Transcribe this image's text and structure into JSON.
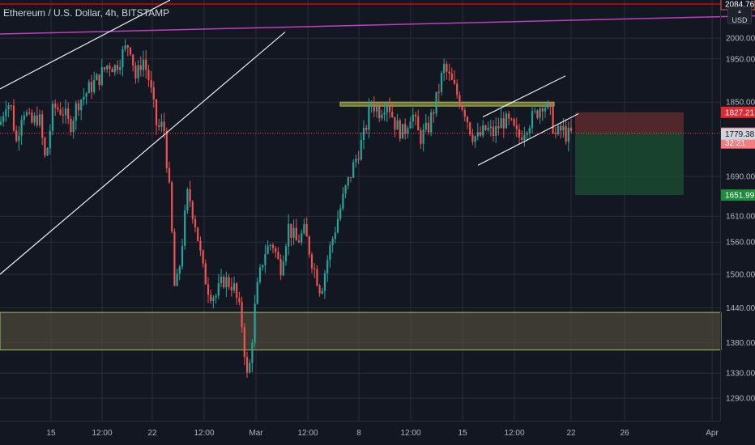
{
  "header": {
    "symbol_title": "Ethereum / U.S. Dollar, 4h, BITSTAMP",
    "currency": "USD"
  },
  "colors": {
    "background": "#131722",
    "grid": "#2a2e39",
    "up_candle": "#26a69a",
    "down_candle": "#ef5350",
    "resistance_line": "#ff0000",
    "long_trendline": "#c040c0",
    "channel_lines": "#ffffff",
    "zone_fill": "#4f4a3a",
    "zone_border": "#a0c060",
    "stop_zone": "#4a2226",
    "target_zone": "#17382b"
  },
  "chart_data": {
    "type": "candlestick",
    "title": "Ethereum / U.S. Dollar, 4h, BITSTAMP",
    "x_axis": {
      "tick_labels": [
        "15",
        "12:00",
        "22",
        "12:00",
        "Mar",
        "12:00",
        "8",
        "12:00",
        "15",
        "12:00",
        "22",
        "26",
        "Apr"
      ]
    },
    "y_axis": {
      "range": [
        1255,
        2095
      ],
      "scale": "log",
      "tick_values": [
        1290,
        1330,
        1380,
        1440,
        1500,
        1560,
        1610,
        1690,
        1850,
        1950,
        2000
      ]
    },
    "price_labels": [
      {
        "value": "2084.76",
        "price": 2084.76,
        "style": "red-outline"
      },
      {
        "value": "1827.21",
        "price": 1827.21,
        "style": "red"
      },
      {
        "value": "1781.21",
        "price": 1781.21,
        "style": "red-light",
        "countdown": "32:21"
      },
      {
        "value": "1779.38",
        "price": 1779.38,
        "style": "grey"
      },
      {
        "value": "1651.99",
        "price": 1651.99,
        "style": "green"
      }
    ],
    "series": [
      {
        "name": "ETHUSD",
        "type": "candles",
        "points": [
          {
            "t": 0,
            "close": 1800
          },
          {
            "t": 8,
            "close": 1855
          },
          {
            "t": 14,
            "close": 1835
          },
          {
            "t": 20,
            "close": 1760
          },
          {
            "t": 28,
            "close": 1840
          },
          {
            "t": 38,
            "close": 1800
          },
          {
            "t": 48,
            "close": 1820
          },
          {
            "t": 56,
            "close": 1720
          },
          {
            "t": 66,
            "close": 1840
          },
          {
            "t": 78,
            "close": 1830
          },
          {
            "t": 86,
            "close": 1795
          },
          {
            "t": 96,
            "close": 1850
          },
          {
            "t": 104,
            "close": 1865
          },
          {
            "t": 112,
            "close": 1885
          },
          {
            "t": 122,
            "close": 1905
          },
          {
            "t": 134,
            "close": 1940
          },
          {
            "t": 142,
            "close": 1930
          },
          {
            "t": 152,
            "close": 1965
          },
          {
            "t": 160,
            "close": 1990
          },
          {
            "t": 168,
            "close": 1900
          },
          {
            "t": 176,
            "close": 1955
          },
          {
            "t": 184,
            "close": 1900
          },
          {
            "t": 194,
            "close": 1790
          },
          {
            "t": 202,
            "close": 1800
          },
          {
            "t": 210,
            "close": 1640
          },
          {
            "t": 216,
            "close": 1460
          },
          {
            "t": 222,
            "close": 1520
          },
          {
            "t": 232,
            "close": 1660
          },
          {
            "t": 242,
            "close": 1590
          },
          {
            "t": 250,
            "close": 1510
          },
          {
            "t": 258,
            "close": 1470
          },
          {
            "t": 266,
            "close": 1460
          },
          {
            "t": 276,
            "close": 1490
          },
          {
            "t": 288,
            "close": 1480
          },
          {
            "t": 298,
            "close": 1420
          },
          {
            "t": 306,
            "close": 1310
          },
          {
            "t": 316,
            "close": 1460
          },
          {
            "t": 326,
            "close": 1540
          },
          {
            "t": 336,
            "close": 1560
          },
          {
            "t": 346,
            "close": 1510
          },
          {
            "t": 356,
            "close": 1590
          },
          {
            "t": 366,
            "close": 1560
          },
          {
            "t": 376,
            "close": 1580
          },
          {
            "t": 386,
            "close": 1520
          },
          {
            "t": 396,
            "close": 1470
          },
          {
            "t": 406,
            "close": 1540
          },
          {
            "t": 416,
            "close": 1600
          },
          {
            "t": 426,
            "close": 1660
          },
          {
            "t": 438,
            "close": 1720
          },
          {
            "t": 450,
            "close": 1780
          },
          {
            "t": 458,
            "close": 1850
          },
          {
            "t": 468,
            "close": 1830
          },
          {
            "t": 478,
            "close": 1855
          },
          {
            "t": 488,
            "close": 1800
          },
          {
            "t": 498,
            "close": 1780
          },
          {
            "t": 508,
            "close": 1830
          },
          {
            "t": 518,
            "close": 1770
          },
          {
            "t": 528,
            "close": 1790
          },
          {
            "t": 538,
            "close": 1850
          },
          {
            "t": 548,
            "close": 1930
          },
          {
            "t": 556,
            "close": 1900
          },
          {
            "t": 566,
            "close": 1860
          },
          {
            "t": 574,
            "close": 1830
          },
          {
            "t": 582,
            "close": 1780
          },
          {
            "t": 590,
            "close": 1770
          },
          {
            "t": 600,
            "close": 1790
          },
          {
            "t": 610,
            "close": 1780
          },
          {
            "t": 620,
            "close": 1810
          },
          {
            "t": 630,
            "close": 1800
          },
          {
            "t": 640,
            "close": 1770
          },
          {
            "t": 650,
            "close": 1800
          },
          {
            "t": 660,
            "close": 1820
          },
          {
            "t": 670,
            "close": 1850
          },
          {
            "t": 678,
            "close": 1830
          },
          {
            "t": 686,
            "close": 1775
          },
          {
            "t": 694,
            "close": 1790
          },
          {
            "t": 700,
            "close": 1775
          },
          {
            "t": 708,
            "close": 1781
          }
        ]
      }
    ],
    "annotations": [
      {
        "name": "resistance-line",
        "type": "horizontal-line",
        "price": 2084.76
      },
      {
        "name": "long-trendline",
        "type": "trendline",
        "from": {
          "t": 0,
          "price": 2010
        },
        "to": {
          "t": 932,
          "price": 2055
        }
      },
      {
        "name": "channel-left-upper",
        "type": "trendline",
        "from": {
          "t": 0,
          "price": 1880
        },
        "to": {
          "t": 210,
          "price": 2095
        }
      },
      {
        "name": "channel-left-lower",
        "type": "trendline",
        "from": {
          "t": 0,
          "price": 1500
        },
        "to": {
          "t": 352,
          "price": 2015
        }
      },
      {
        "name": "rising-channel-upper",
        "type": "trendline",
        "from": {
          "t": 596,
          "price": 1817
        },
        "to": {
          "t": 698,
          "price": 1910
        }
      },
      {
        "name": "rising-channel-lower",
        "type": "trendline",
        "from": {
          "t": 590,
          "price": 1713
        },
        "to": {
          "t": 714,
          "price": 1824
        }
      },
      {
        "name": "resistance-zone",
        "type": "horizontal-zone",
        "from_t": 420,
        "to_t": 684,
        "price_high": 1850,
        "price_low": 1841
      },
      {
        "name": "support-zone",
        "type": "horizontal-zone",
        "from_t": 0,
        "to_t": 890,
        "price_high": 1432,
        "price_low": 1368
      },
      {
        "name": "stop-loss-zone",
        "type": "position-zone",
        "from_t": 710,
        "to_t": 844,
        "price_high": 1827.21,
        "price_low": 1781.21
      },
      {
        "name": "take-profit-zone",
        "type": "position-zone",
        "from_t": 710,
        "to_t": 844,
        "price_high": 1781.21,
        "price_low": 1651.99
      }
    ]
  }
}
